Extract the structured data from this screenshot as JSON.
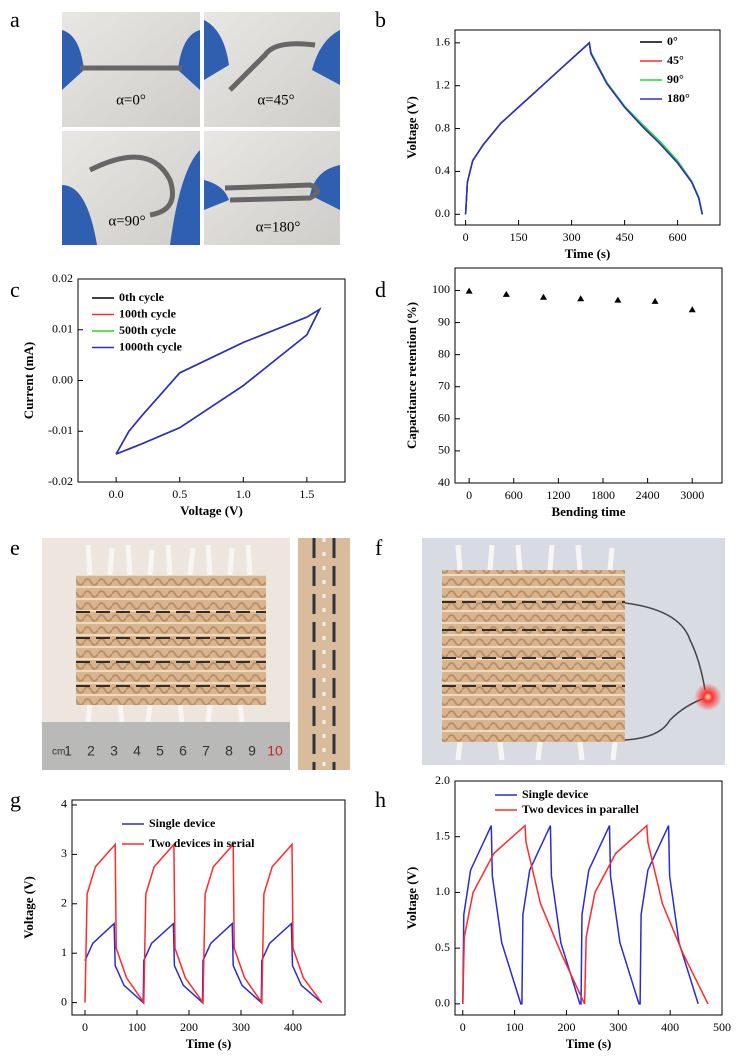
{
  "panel_labels": [
    "a",
    "b",
    "c",
    "d",
    "e",
    "f",
    "g",
    "h"
  ],
  "photo_a": {
    "captions": [
      "α=0°",
      "α=45°",
      "α=90°",
      "α=180°"
    ]
  },
  "photo_e": {
    "ruler_unit": "cm",
    "ruler_numbers": [
      "1",
      "2",
      "3",
      "4",
      "5",
      "6",
      "7",
      "8",
      "9",
      "10"
    ]
  },
  "chart_data": [
    {
      "type": "line",
      "xlabel": "Time (s)",
      "ylabel": "Voltage (V)",
      "xlim": [
        -30,
        720
      ],
      "ylim": [
        -0.1,
        1.72
      ],
      "xticks": [
        0,
        150,
        300,
        450,
        600
      ],
      "yticks": [
        {
          "value": 0,
          "label": "0.0"
        },
        0.4,
        0.8,
        1.2,
        1.6
      ],
      "legend": "upper right",
      "x": [
        0,
        5,
        20,
        50,
        100,
        150,
        200,
        250,
        300,
        350,
        355,
        400,
        450,
        500,
        550,
        600,
        640,
        660,
        670
      ],
      "series": [
        {
          "name": "0°",
          "color": "#000000",
          "values": [
            0,
            0.3,
            0.5,
            0.65,
            0.85,
            1.0,
            1.15,
            1.3,
            1.45,
            1.6,
            1.5,
            1.22,
            1.0,
            0.82,
            0.66,
            0.48,
            0.3,
            0.15,
            0
          ]
        },
        {
          "name": "45°",
          "color": "#ff2a2a",
          "values": [
            0,
            0.3,
            0.5,
            0.65,
            0.85,
            1.0,
            1.15,
            1.3,
            1.45,
            1.6,
            1.5,
            1.22,
            1.0,
            0.82,
            0.66,
            0.48,
            0.3,
            0.15,
            0
          ]
        },
        {
          "name": "90°",
          "color": "#22dd22",
          "values": [
            0,
            0.3,
            0.5,
            0.65,
            0.85,
            1.0,
            1.15,
            1.3,
            1.45,
            1.6,
            1.51,
            1.23,
            1.01,
            0.84,
            0.68,
            0.5,
            0.31,
            0.16,
            0
          ]
        },
        {
          "name": "180°",
          "color": "#2b2bd6",
          "values": [
            0,
            0.3,
            0.5,
            0.65,
            0.85,
            1.0,
            1.15,
            1.3,
            1.45,
            1.6,
            1.5,
            1.22,
            1.0,
            0.82,
            0.66,
            0.48,
            0.3,
            0.15,
            0
          ]
        }
      ]
    },
    {
      "type": "line",
      "xlabel": "Voltage (V)",
      "ylabel": "Current (mA)",
      "xlim": [
        -0.3,
        1.8
      ],
      "ylim": [
        -0.02,
        0.02
      ],
      "xticks": [
        {
          "value": 0,
          "label": "0.0"
        },
        0.5,
        {
          "value": 1,
          "label": "1.0"
        },
        1.5
      ],
      "yticks": [
        -0.02,
        -0.01,
        {
          "value": 0,
          "label": "0.00"
        },
        0.01,
        0.02
      ],
      "legend": "upper left",
      "x": [
        0,
        0.1,
        0.2,
        0.5,
        1.0,
        1.5,
        1.6,
        1.55,
        1.5,
        1.2,
        1.0,
        0.5,
        0.2,
        0.1,
        0
      ],
      "series": [
        {
          "name": "0th cycle",
          "color": "#000000",
          "values": [
            -0.0145,
            -0.01,
            -0.007,
            0.0015,
            0.0075,
            0.0125,
            0.014,
            0.0115,
            0.009,
            0.003,
            -0.001,
            -0.0093,
            -0.0125,
            -0.0135,
            -0.0145
          ]
        },
        {
          "name": "100th cycle",
          "color": "#ff2a2a",
          "values": [
            -0.0145,
            -0.01,
            -0.007,
            0.0015,
            0.0075,
            0.0125,
            0.014,
            0.0115,
            0.009,
            0.003,
            -0.001,
            -0.0093,
            -0.0125,
            -0.0135,
            -0.0145
          ]
        },
        {
          "name": "500th cycle",
          "color": "#22dd22",
          "values": [
            -0.0145,
            -0.01,
            -0.007,
            0.0015,
            0.0075,
            0.0125,
            0.014,
            0.0115,
            0.009,
            0.003,
            -0.001,
            -0.0093,
            -0.0125,
            -0.0135,
            -0.0145
          ]
        },
        {
          "name": "1000th cycle",
          "color": "#2b2bd6",
          "values": [
            -0.0145,
            -0.01,
            -0.007,
            0.0015,
            0.0075,
            0.0125,
            0.014,
            0.0115,
            0.009,
            0.003,
            -0.001,
            -0.0093,
            -0.0125,
            -0.0135,
            -0.0145
          ]
        }
      ]
    },
    {
      "type": "scatter",
      "xlabel": "Bending time",
      "ylabel": "Capacitance retention (%)",
      "xlim": [
        -190,
        3400
      ],
      "ylim": [
        40,
        107
      ],
      "xticks": [
        0,
        600,
        1200,
        1800,
        2400,
        3000
      ],
      "yticks": [
        40,
        50,
        60,
        70,
        80,
        90,
        100
      ],
      "color": "#000000",
      "x": [
        0,
        500,
        1000,
        1500,
        2000,
        2500,
        3000
      ],
      "values": [
        99.8,
        98.8,
        97.9,
        97.4,
        97,
        96.6,
        94
      ]
    },
    {
      "type": "line",
      "xlabel": "Time (s)",
      "ylabel": "Voltage (V)",
      "xlim": [
        -25,
        500
      ],
      "ylim": [
        -0.25,
        4.1
      ],
      "xticks": [
        0,
        100,
        200,
        300,
        400
      ],
      "yticks": [
        0,
        1,
        2,
        3,
        4
      ],
      "legend": "upper center",
      "series": [
        {
          "name": "Single device",
          "color": "#2b2bd6",
          "x": [
            0,
            15,
            56,
            58,
            75,
            112,
            113,
            128,
            170,
            172,
            189,
            226,
            227,
            242,
            283,
            285,
            302,
            339,
            340,
            355,
            397,
            399,
            416,
            455
          ],
          "values": [
            0.85,
            1.2,
            1.6,
            0.75,
            0.35,
            0,
            0.85,
            1.2,
            1.6,
            0.75,
            0.35,
            0,
            0.85,
            1.2,
            1.6,
            0.75,
            0.35,
            0,
            0.85,
            1.2,
            1.6,
            0.75,
            0.35,
            0
          ]
        },
        {
          "name": "Two devices in serial",
          "color": "#ff2a2a",
          "x": [
            0,
            4,
            20,
            58,
            60,
            80,
            113,
            117,
            133,
            171,
            173,
            193,
            227,
            231,
            247,
            285,
            287,
            307,
            340,
            344,
            360,
            398,
            400,
            420,
            455
          ],
          "values": [
            0,
            2.2,
            2.75,
            3.2,
            1.1,
            0.5,
            0,
            2.2,
            2.75,
            3.2,
            1.1,
            0.5,
            0,
            2.2,
            2.75,
            3.2,
            1.1,
            0.5,
            0,
            2.2,
            2.75,
            3.2,
            1.1,
            0.5,
            0
          ]
        }
      ]
    },
    {
      "type": "line",
      "xlabel": "Time (s)",
      "ylabel": "Voltage (V)",
      "xlim": [
        -15,
        500
      ],
      "ylim": [
        -0.1,
        2.0
      ],
      "xticks": [
        0,
        100,
        200,
        300,
        400,
        500
      ],
      "yticks": [
        {
          "value": 0,
          "label": "0.0"
        },
        0.5,
        {
          "value": 1,
          "label": "1.0"
        },
        1.5,
        {
          "value": 2,
          "label": "2.0"
        }
      ],
      "legend": "upper center",
      "series": [
        {
          "name": "Single device",
          "color": "#2b2bd6",
          "x": [
            0,
            2,
            15,
            55,
            57,
            75,
            112,
            114,
            116,
            129,
            169,
            171,
            189,
            226,
            228,
            230,
            243,
            283,
            285,
            303,
            340,
            342,
            344,
            357,
            397,
            399,
            417,
            454
          ],
          "values": [
            0,
            0.8,
            1.2,
            1.6,
            1.15,
            0.55,
            0,
            0,
            0.8,
            1.2,
            1.6,
            1.15,
            0.55,
            0,
            0,
            0.8,
            1.2,
            1.6,
            1.15,
            0.55,
            0,
            0,
            0.8,
            1.2,
            1.6,
            1.15,
            0.55,
            0
          ]
        },
        {
          "name": "Two devices in parallel",
          "color": "#ff2a2a",
          "x": [
            0,
            3,
            20,
            60,
            120,
            122,
            150,
            190,
            235,
            238,
            255,
            295,
            355,
            357,
            385,
            425,
            473
          ],
          "values": [
            0,
            0.6,
            1.0,
            1.35,
            1.6,
            1.45,
            0.9,
            0.45,
            0,
            0.6,
            1.0,
            1.35,
            1.6,
            1.45,
            0.9,
            0.45,
            0
          ]
        }
      ]
    }
  ]
}
